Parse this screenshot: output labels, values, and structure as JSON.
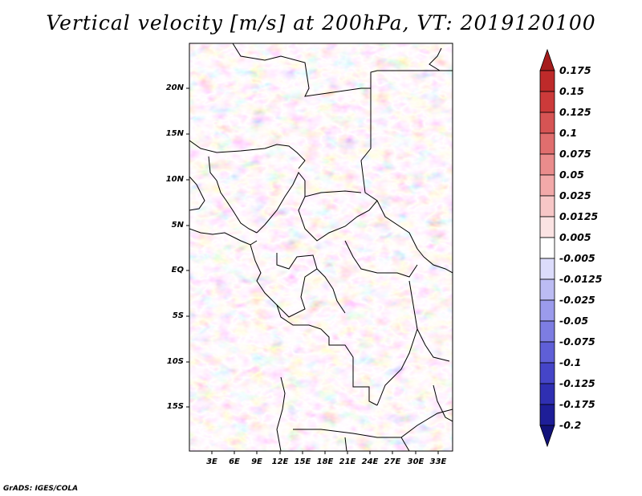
{
  "title": "Vertical velocity [m/s] at 200hPa, VT: 2019120100",
  "credit": "GrADS: IGES/COLA",
  "map": {
    "lat_labels": [
      "20N",
      "15N",
      "10N",
      "5N",
      "EQ",
      "5S",
      "10S",
      "15S"
    ],
    "lon_labels": [
      "3E",
      "6E",
      "9E",
      "12E",
      "15E",
      "18E",
      "21E",
      "24E",
      "27E",
      "30E",
      "33E"
    ]
  },
  "colorbar": {
    "levels": [
      "0.175",
      "0.15",
      "0.125",
      "0.1",
      "0.075",
      "0.05",
      "0.025",
      "0.0125",
      "0.005",
      "-0.005",
      "-0.0125",
      "-0.025",
      "-0.05",
      "-0.075",
      "-0.1",
      "-0.125",
      "-0.175",
      "-0.2"
    ],
    "colors": [
      "#a51c1c",
      "#be2a2a",
      "#cc3a3a",
      "#d65454",
      "#e06e6e",
      "#ea8c8c",
      "#f2a9a9",
      "#f7c7c7",
      "#fbe3e3",
      "#ffffff",
      "#dcdcfb",
      "#bcbcf3",
      "#9b9bec",
      "#7d7de2",
      "#5f5fd7",
      "#4545c8",
      "#2f2fb2",
      "#1e1e98",
      "#12127a"
    ]
  }
}
